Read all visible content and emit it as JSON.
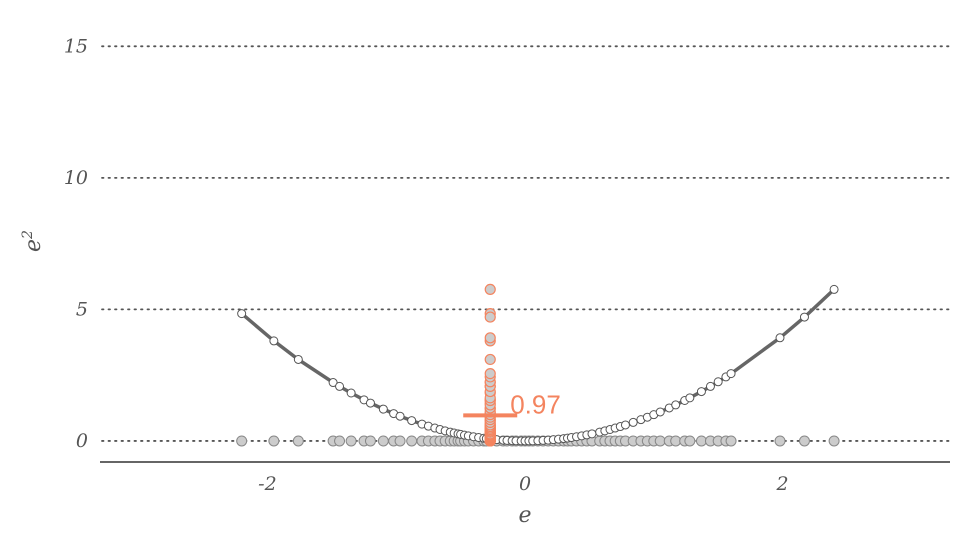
{
  "chart_data": {
    "type": "scatter",
    "title": "",
    "xlabel": "e",
    "ylabel": "e",
    "ylabel_superscript": "2",
    "xlim": [
      -3.3,
      3.3
    ],
    "ylim": [
      -0.8,
      16
    ],
    "x_ticks": [
      -2,
      0,
      2
    ],
    "x_tick_labels": [
      "-2",
      "0",
      "2"
    ],
    "y_ticks": [
      0,
      5,
      10,
      15
    ],
    "y_tick_labels": [
      "0",
      "5",
      "10",
      "15"
    ],
    "grid": "horizontal dotted",
    "colors": {
      "accent": "#f4845f",
      "curve": "#666666",
      "point_fill": "#cccccc",
      "axis": "#666666"
    },
    "residuals_e": [
      -2.2,
      -1.95,
      -1.76,
      -1.49,
      -1.44,
      -1.35,
      -1.25,
      -1.2,
      -1.1,
      -1.02,
      -0.97,
      -0.88,
      -0.8,
      -0.75,
      -0.7,
      -0.66,
      -0.62,
      -0.58,
      -0.55,
      -0.52,
      -0.5,
      -0.47,
      -0.44,
      -0.4,
      -0.36,
      -0.32,
      -0.3,
      -0.27,
      -0.22,
      -0.17,
      -0.14,
      -0.1,
      -0.07,
      -0.03,
      0.0,
      0.03,
      0.06,
      0.1,
      0.14,
      0.18,
      0.22,
      0.26,
      0.3,
      0.33,
      0.36,
      0.4,
      0.44,
      0.48,
      0.52,
      0.58,
      0.62,
      0.66,
      0.7,
      0.74,
      0.78,
      0.84,
      0.9,
      0.95,
      1.0,
      1.05,
      1.12,
      1.17,
      1.24,
      1.28,
      1.37,
      1.44,
      1.5,
      1.56,
      1.6,
      1.98,
      2.17,
      2.4
    ],
    "projection_x": -0.27,
    "mean_squared_residual": 0.97,
    "mean_label": "0.97"
  }
}
